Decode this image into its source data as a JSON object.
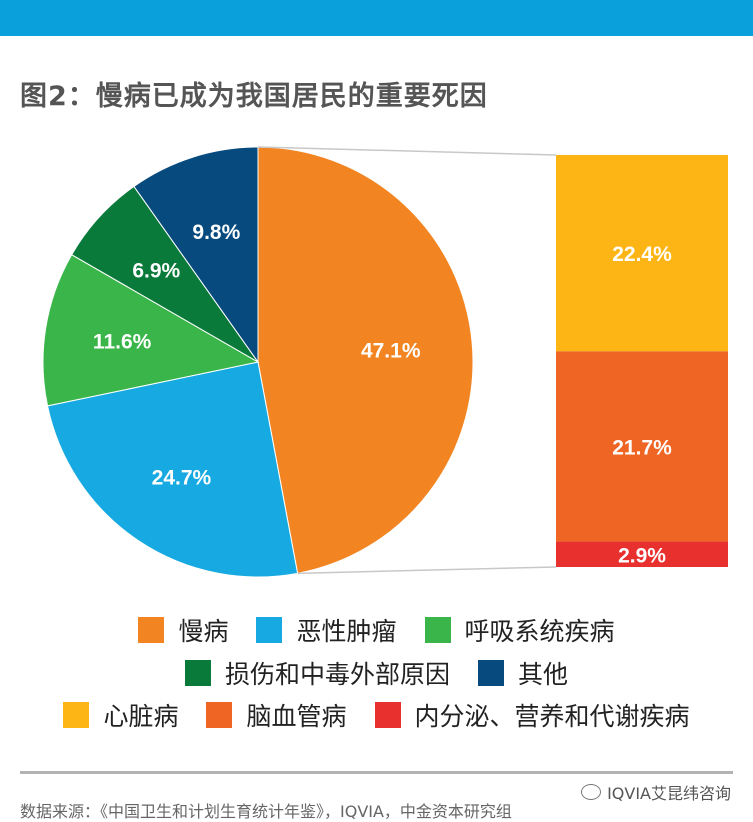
{
  "header": {
    "title": "图2：慢病已成为我国居民的重要死因"
  },
  "chart_data": {
    "type": "pie",
    "title": "图2：慢病已成为我国居民的重要死因",
    "slices": [
      {
        "name": "慢病",
        "value": 47.1,
        "label": "47.1%",
        "color": "#f28522"
      },
      {
        "name": "恶性肿瘤",
        "value": 24.7,
        "label": "24.7%",
        "color": "#17a9e1"
      },
      {
        "name": "呼吸系统疾病",
        "value": 11.6,
        "label": "11.6%",
        "color": "#3ab54a"
      },
      {
        "name": "损伤和中毒外部原因",
        "value": 6.9,
        "label": "6.9%",
        "color": "#0a7a3b"
      },
      {
        "name": "其他",
        "value": 9.8,
        "label": "9.8%",
        "color": "#064a7e"
      }
    ],
    "breakdown": {
      "of": "慢病",
      "segments": [
        {
          "name": "心脏病",
          "value": 22.4,
          "label": "22.4%",
          "color": "#fdb515"
        },
        {
          "name": "脑血管病",
          "value": 21.7,
          "label": "21.7%",
          "color": "#ef6524"
        },
        {
          "name": "内分泌、营养和代谢疾病",
          "value": 2.9,
          "label": "2.9%",
          "color": "#e8312f"
        }
      ]
    },
    "legend": [
      [
        {
          "name": "慢病",
          "color": "#f28522"
        },
        {
          "name": "恶性肿瘤",
          "color": "#17a9e1"
        },
        {
          "name": "呼吸系统疾病",
          "color": "#3ab54a"
        }
      ],
      [
        {
          "name": "损伤和中毒外部原因",
          "color": "#0a7a3b"
        },
        {
          "name": "其他",
          "color": "#064a7e"
        }
      ],
      [
        {
          "name": "心脏病",
          "color": "#fdb515"
        },
        {
          "name": "脑血管病",
          "color": "#ef6524"
        },
        {
          "name": "内分泌、营养和代谢疾病",
          "color": "#e8312f"
        }
      ]
    ]
  },
  "footer": {
    "source": "数据来源：《中国卫生和计划生育统计年鉴》，IQVIA，中金资本研究组",
    "watermark": "IQVIA艾昆纬咨询"
  }
}
